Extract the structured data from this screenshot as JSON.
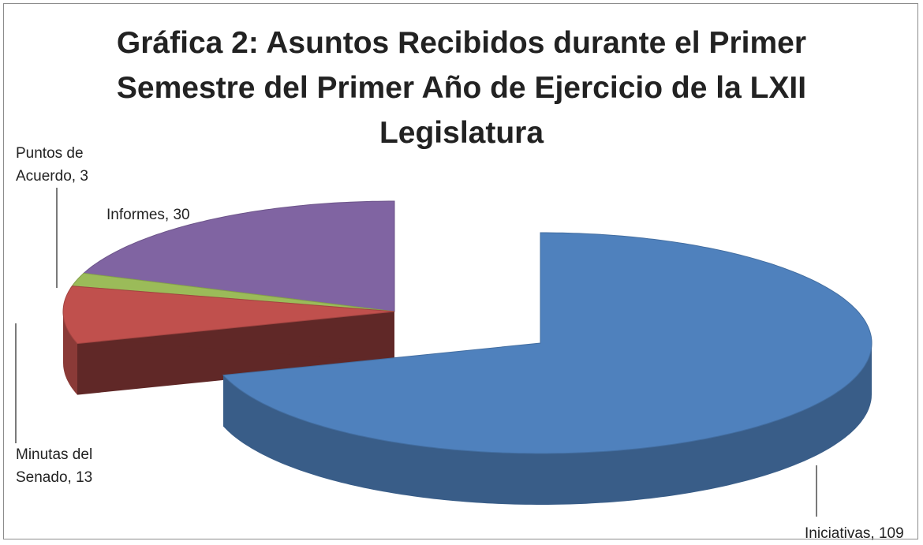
{
  "chart_data": {
    "type": "pie3d",
    "title": "Gráfica 2: Asuntos Recibidos durante el Primer Semestre del Primer Año de Ejercicio de la LXII Legislatura",
    "values": [
      109,
      13,
      3,
      30
    ],
    "value_labels": [
      "Iniciativas, 109",
      "Minutas del Senado, 13",
      "Puntos de Acuerdo, 3",
      "Informes, 30"
    ],
    "colors": [
      "#4f81bd",
      "#c0504d",
      "#9bbb59",
      "#8064a2"
    ]
  }
}
